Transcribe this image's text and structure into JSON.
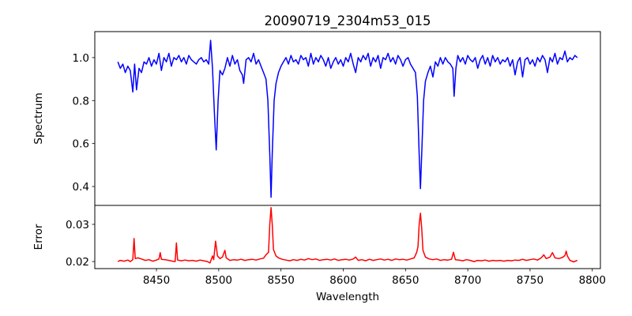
{
  "chart_data": [
    {
      "type": "line",
      "title": "20090719_2304m53_015",
      "xlabel": "",
      "ylabel": "Spectrum",
      "xlim": [
        8400.5,
        8806.5
      ],
      "ylim": [
        0.312,
        1.121
      ],
      "yticks": [
        0.4,
        0.6,
        0.8,
        1.0
      ],
      "ytick_labels": [
        "0.4",
        "0.6",
        "0.8",
        "1.0"
      ],
      "color": "#0000ff",
      "points": [
        [
          8419,
          0.98
        ],
        [
          8421,
          0.95
        ],
        [
          8423,
          0.97
        ],
        [
          8425,
          0.93
        ],
        [
          8427,
          0.96
        ],
        [
          8429,
          0.94
        ],
        [
          8431,
          0.84
        ],
        [
          8432.5,
          0.97
        ],
        [
          8434,
          0.85
        ],
        [
          8436,
          0.95
        ],
        [
          8438,
          0.93
        ],
        [
          8440,
          0.98
        ],
        [
          8442,
          0.97
        ],
        [
          8444,
          1.0
        ],
        [
          8446,
          0.96
        ],
        [
          8448,
          0.99
        ],
        [
          8450,
          0.97
        ],
        [
          8452,
          1.02
        ],
        [
          8454,
          0.94
        ],
        [
          8456,
          1.0
        ],
        [
          8458,
          0.98
        ],
        [
          8460,
          1.02
        ],
        [
          8462,
          0.96
        ],
        [
          8464,
          1.0
        ],
        [
          8466,
          0.99
        ],
        [
          8468,
          1.01
        ],
        [
          8470,
          0.98
        ],
        [
          8472,
          1.0
        ],
        [
          8474,
          0.97
        ],
        [
          8476,
          1.01
        ],
        [
          8478,
          0.99
        ],
        [
          8480,
          0.98
        ],
        [
          8482,
          0.97
        ],
        [
          8484,
          0.99
        ],
        [
          8486,
          1.0
        ],
        [
          8488,
          0.98
        ],
        [
          8490,
          0.99
        ],
        [
          8492,
          0.97
        ],
        [
          8493.5,
          1.08
        ],
        [
          8495,
          0.95
        ],
        [
          8496.5,
          0.75
        ],
        [
          8498,
          0.57
        ],
        [
          8499.5,
          0.8
        ],
        [
          8501,
          0.94
        ],
        [
          8503,
          0.92
        ],
        [
          8505,
          0.95
        ],
        [
          8507,
          1.0
        ],
        [
          8509,
          0.96
        ],
        [
          8511,
          1.01
        ],
        [
          8513,
          0.97
        ],
        [
          8515,
          0.99
        ],
        [
          8517,
          0.94
        ],
        [
          8519,
          0.92
        ],
        [
          8520,
          0.88
        ],
        [
          8522,
          0.99
        ],
        [
          8524,
          1.0
        ],
        [
          8526,
          0.98
        ],
        [
          8528,
          1.02
        ],
        [
          8530,
          0.97
        ],
        [
          8532,
          0.99
        ],
        [
          8534,
          0.96
        ],
        [
          8536,
          0.93
        ],
        [
          8538,
          0.9
        ],
        [
          8539.5,
          0.8
        ],
        [
          8541,
          0.55
        ],
        [
          8542,
          0.35
        ],
        [
          8543,
          0.55
        ],
        [
          8544.5,
          0.8
        ],
        [
          8546,
          0.88
        ],
        [
          8548,
          0.93
        ],
        [
          8550,
          0.96
        ],
        [
          8552,
          0.98
        ],
        [
          8554,
          1.0
        ],
        [
          8556,
          0.97
        ],
        [
          8558,
          1.01
        ],
        [
          8560,
          0.98
        ],
        [
          8562,
          0.99
        ],
        [
          8564,
          0.97
        ],
        [
          8566,
          1.01
        ],
        [
          8568,
          0.99
        ],
        [
          8570,
          1.0
        ],
        [
          8572,
          0.96
        ],
        [
          8574,
          1.02
        ],
        [
          8576,
          0.97
        ],
        [
          8578,
          1.0
        ],
        [
          8580,
          0.98
        ],
        [
          8582,
          1.01
        ],
        [
          8584,
          0.99
        ],
        [
          8586,
          0.96
        ],
        [
          8588,
          1.0
        ],
        [
          8590,
          0.95
        ],
        [
          8592,
          0.98
        ],
        [
          8594,
          1.0
        ],
        [
          8596,
          0.97
        ],
        [
          8598,
          0.99
        ],
        [
          8600,
          0.96
        ],
        [
          8602,
          1.0
        ],
        [
          8604,
          0.98
        ],
        [
          8606,
          1.02
        ],
        [
          8608,
          0.97
        ],
        [
          8610,
          0.93
        ],
        [
          8612,
          1.0
        ],
        [
          8614,
          0.98
        ],
        [
          8616,
          1.01
        ],
        [
          8618,
          0.99
        ],
        [
          8620,
          1.02
        ],
        [
          8622,
          0.96
        ],
        [
          8624,
          1.0
        ],
        [
          8626,
          0.98
        ],
        [
          8628,
          1.01
        ],
        [
          8630,
          0.95
        ],
        [
          8632,
          1.0
        ],
        [
          8634,
          0.99
        ],
        [
          8636,
          1.02
        ],
        [
          8638,
          0.98
        ],
        [
          8640,
          1.0
        ],
        [
          8642,
          0.97
        ],
        [
          8644,
          1.01
        ],
        [
          8646,
          0.99
        ],
        [
          8648,
          0.96
        ],
        [
          8650,
          0.99
        ],
        [
          8652,
          1.0
        ],
        [
          8654,
          0.97
        ],
        [
          8656,
          0.95
        ],
        [
          8658,
          0.93
        ],
        [
          8659.5,
          0.82
        ],
        [
          8661,
          0.55
        ],
        [
          8662,
          0.39
        ],
        [
          8663,
          0.55
        ],
        [
          8664.5,
          0.8
        ],
        [
          8666,
          0.89
        ],
        [
          8668,
          0.93
        ],
        [
          8670,
          0.96
        ],
        [
          8672,
          0.91
        ],
        [
          8674,
          0.98
        ],
        [
          8676,
          0.96
        ],
        [
          8678,
          1.0
        ],
        [
          8680,
          0.97
        ],
        [
          8682,
          1.0
        ],
        [
          8684,
          0.98
        ],
        [
          8686,
          0.97
        ],
        [
          8688,
          0.95
        ],
        [
          8689,
          0.82
        ],
        [
          8690.5,
          0.95
        ],
        [
          8692,
          1.01
        ],
        [
          8694,
          0.98
        ],
        [
          8696,
          1.0
        ],
        [
          8698,
          0.97
        ],
        [
          8700,
          1.01
        ],
        [
          8702,
          0.99
        ],
        [
          8704,
          0.98
        ],
        [
          8706,
          1.0
        ],
        [
          8708,
          0.95
        ],
        [
          8710,
          0.99
        ],
        [
          8712,
          1.01
        ],
        [
          8714,
          0.97
        ],
        [
          8716,
          1.0
        ],
        [
          8718,
          0.96
        ],
        [
          8720,
          1.01
        ],
        [
          8722,
          0.98
        ],
        [
          8724,
          1.0
        ],
        [
          8726,
          0.97
        ],
        [
          8728,
          0.99
        ],
        [
          8730,
          0.98
        ],
        [
          8732,
          1.0
        ],
        [
          8734,
          0.96
        ],
        [
          8736,
          0.99
        ],
        [
          8738,
          0.92
        ],
        [
          8740,
          0.98
        ],
        [
          8742,
          1.0
        ],
        [
          8744,
          0.91
        ],
        [
          8746,
          0.99
        ],
        [
          8748,
          1.0
        ],
        [
          8750,
          0.97
        ],
        [
          8752,
          0.99
        ],
        [
          8754,
          0.96
        ],
        [
          8756,
          1.0
        ],
        [
          8758,
          0.98
        ],
        [
          8760,
          1.01
        ],
        [
          8762,
          0.99
        ],
        [
          8764,
          0.93
        ],
        [
          8766,
          1.0
        ],
        [
          8768,
          0.98
        ],
        [
          8770,
          1.02
        ],
        [
          8772,
          0.97
        ],
        [
          8774,
          1.0
        ],
        [
          8776,
          0.99
        ],
        [
          8778,
          1.03
        ],
        [
          8780,
          0.98
        ],
        [
          8782,
          1.0
        ],
        [
          8784,
          0.99
        ],
        [
          8786,
          1.01
        ],
        [
          8788,
          1.0
        ]
      ]
    },
    {
      "type": "line",
      "title": "",
      "xlabel": "Wavelength",
      "ylabel": "Error",
      "xlim": [
        8400.5,
        8806.5
      ],
      "ylim": [
        0.0181,
        0.0351
      ],
      "xticks": [
        8450,
        8500,
        8550,
        8600,
        8650,
        8700,
        8750,
        8800
      ],
      "xtick_labels": [
        "8450",
        "8500",
        "8550",
        "8600",
        "8650",
        "8700",
        "8750",
        "8800"
      ],
      "yticks": [
        0.02,
        0.03
      ],
      "ytick_labels": [
        "0.02",
        "0.03"
      ],
      "color": "#ff0000",
      "points": [
        [
          8419,
          0.02
        ],
        [
          8421,
          0.0203
        ],
        [
          8424,
          0.0201
        ],
        [
          8427,
          0.0204
        ],
        [
          8429,
          0.02
        ],
        [
          8431,
          0.0205
        ],
        [
          8432,
          0.0262
        ],
        [
          8433,
          0.0208
        ],
        [
          8435,
          0.021
        ],
        [
          8438,
          0.0207
        ],
        [
          8441,
          0.0203
        ],
        [
          8444,
          0.0205
        ],
        [
          8447,
          0.0201
        ],
        [
          8450,
          0.0204
        ],
        [
          8452,
          0.0207
        ],
        [
          8453,
          0.0224
        ],
        [
          8454,
          0.0206
        ],
        [
          8457,
          0.0205
        ],
        [
          8460,
          0.0203
        ],
        [
          8463,
          0.0201
        ],
        [
          8465,
          0.02
        ],
        [
          8466,
          0.025
        ],
        [
          8467,
          0.0204
        ],
        [
          8470,
          0.0202
        ],
        [
          8473,
          0.0204
        ],
        [
          8476,
          0.0202
        ],
        [
          8479,
          0.0203
        ],
        [
          8482,
          0.0201
        ],
        [
          8485,
          0.0204
        ],
        [
          8488,
          0.0202
        ],
        [
          8491,
          0.02
        ],
        [
          8493,
          0.0196
        ],
        [
          8495,
          0.0215
        ],
        [
          8496,
          0.0205
        ],
        [
          8497.5,
          0.0255
        ],
        [
          8499,
          0.0215
        ],
        [
          8501,
          0.0208
        ],
        [
          8503,
          0.0212
        ],
        [
          8505,
          0.023
        ],
        [
          8506,
          0.021
        ],
        [
          8509,
          0.0203
        ],
        [
          8512,
          0.0205
        ],
        [
          8515,
          0.0204
        ],
        [
          8518,
          0.0206
        ],
        [
          8521,
          0.0203
        ],
        [
          8524,
          0.0205
        ],
        [
          8527,
          0.0206
        ],
        [
          8530,
          0.0204
        ],
        [
          8533,
          0.0207
        ],
        [
          8536,
          0.0209
        ],
        [
          8538,
          0.0218
        ],
        [
          8540,
          0.0225
        ],
        [
          8541,
          0.03
        ],
        [
          8542,
          0.0345
        ],
        [
          8543,
          0.03
        ],
        [
          8544,
          0.0232
        ],
        [
          8546,
          0.0215
        ],
        [
          8548,
          0.021
        ],
        [
          8551,
          0.0206
        ],
        [
          8554,
          0.0204
        ],
        [
          8557,
          0.0202
        ],
        [
          8560,
          0.0205
        ],
        [
          8563,
          0.0203
        ],
        [
          8566,
          0.0206
        ],
        [
          8569,
          0.0204
        ],
        [
          8572,
          0.0208
        ],
        [
          8575,
          0.0205
        ],
        [
          8578,
          0.0207
        ],
        [
          8581,
          0.0203
        ],
        [
          8584,
          0.0205
        ],
        [
          8587,
          0.0206
        ],
        [
          8590,
          0.0204
        ],
        [
          8593,
          0.0207
        ],
        [
          8596,
          0.0203
        ],
        [
          8599,
          0.0205
        ],
        [
          8602,
          0.0206
        ],
        [
          8605,
          0.0204
        ],
        [
          8608,
          0.0207
        ],
        [
          8610,
          0.0212
        ],
        [
          8612,
          0.0203
        ],
        [
          8615,
          0.0205
        ],
        [
          8618,
          0.0202
        ],
        [
          8621,
          0.0206
        ],
        [
          8624,
          0.0203
        ],
        [
          8627,
          0.0205
        ],
        [
          8630,
          0.0207
        ],
        [
          8633,
          0.0204
        ],
        [
          8636,
          0.0206
        ],
        [
          8639,
          0.0203
        ],
        [
          8642,
          0.0207
        ],
        [
          8645,
          0.0205
        ],
        [
          8648,
          0.0206
        ],
        [
          8651,
          0.0204
        ],
        [
          8654,
          0.0207
        ],
        [
          8657,
          0.021
        ],
        [
          8659,
          0.0225
        ],
        [
          8660,
          0.024
        ],
        [
          8661,
          0.03
        ],
        [
          8662,
          0.033
        ],
        [
          8663,
          0.029
        ],
        [
          8664,
          0.023
        ],
        [
          8666,
          0.0212
        ],
        [
          8669,
          0.0207
        ],
        [
          8672,
          0.0205
        ],
        [
          8675,
          0.0207
        ],
        [
          8678,
          0.0203
        ],
        [
          8681,
          0.0205
        ],
        [
          8684,
          0.0204
        ],
        [
          8687,
          0.0206
        ],
        [
          8688.5,
          0.0225
        ],
        [
          8690,
          0.0205
        ],
        [
          8693,
          0.0204
        ],
        [
          8696,
          0.0202
        ],
        [
          8699,
          0.0205
        ],
        [
          8702,
          0.0203
        ],
        [
          8705,
          0.02
        ],
        [
          8708,
          0.0203
        ],
        [
          8711,
          0.0202
        ],
        [
          8714,
          0.0204
        ],
        [
          8717,
          0.0201
        ],
        [
          8720,
          0.0203
        ],
        [
          8723,
          0.0202
        ],
        [
          8726,
          0.0203
        ],
        [
          8729,
          0.0201
        ],
        [
          8732,
          0.0203
        ],
        [
          8735,
          0.0202
        ],
        [
          8738,
          0.0204
        ],
        [
          8741,
          0.0203
        ],
        [
          8744,
          0.0206
        ],
        [
          8747,
          0.0203
        ],
        [
          8750,
          0.0205
        ],
        [
          8753,
          0.0207
        ],
        [
          8756,
          0.0204
        ],
        [
          8759,
          0.021
        ],
        [
          8761,
          0.0218
        ],
        [
          8763,
          0.0208
        ],
        [
          8766,
          0.0212
        ],
        [
          8768,
          0.0224
        ],
        [
          8770,
          0.021
        ],
        [
          8773,
          0.0208
        ],
        [
          8776,
          0.0211
        ],
        [
          8778,
          0.0216
        ],
        [
          8779,
          0.0228
        ],
        [
          8780,
          0.0215
        ],
        [
          8782,
          0.0203
        ],
        [
          8785,
          0.0199
        ],
        [
          8788,
          0.0203
        ]
      ]
    }
  ]
}
